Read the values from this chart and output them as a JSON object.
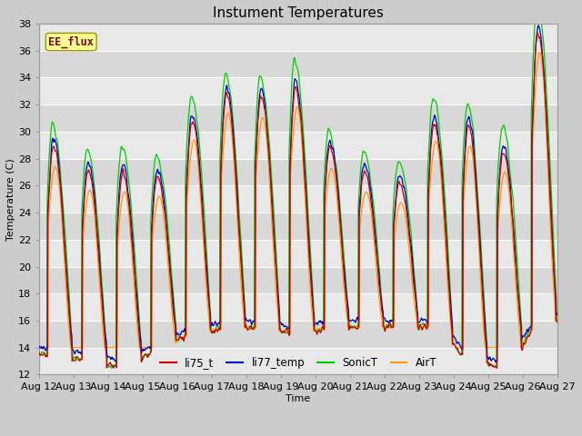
{
  "title": "Instument Temperatures",
  "xlabel": "Time",
  "ylabel": "Temperature (C)",
  "ylim": [
    12,
    38
  ],
  "yticks": [
    12,
    14,
    16,
    18,
    20,
    22,
    24,
    26,
    28,
    30,
    32,
    34,
    36,
    38
  ],
  "xtick_labels": [
    "Aug 12",
    "Aug 13",
    "Aug 14",
    "Aug 15",
    "Aug 16",
    "Aug 17",
    "Aug 18",
    "Aug 19",
    "Aug 20",
    "Aug 21",
    "Aug 22",
    "Aug 23",
    "Aug 24",
    "Aug 25",
    "Aug 26",
    "Aug 27"
  ],
  "colors": {
    "li75_t": "#cc0000",
    "li77_temp": "#0000cc",
    "SonicT": "#00cc00",
    "AirT": "#ff9900"
  },
  "legend_label": "EE_flux",
  "legend_text_color": "#8b0000",
  "legend_box_color": "#ffff99",
  "legend_box_edge": "#999900",
  "band_colors": [
    "#e8e8e8",
    "#d8d8d8"
  ],
  "grid_line_color": "#ffffff",
  "fig_bg": "#cccccc",
  "series_names": [
    "li75_t",
    "li77_temp",
    "SonicT",
    "AirT"
  ],
  "peak_amps": [
    15.5,
    14.0,
    14.5,
    12.5,
    16.0,
    17.5,
    17.0,
    18.5,
    13.0,
    11.5,
    10.5,
    15.5,
    17.5,
    15.5,
    22.0
  ],
  "min_temps": [
    13.5,
    13.0,
    12.5,
    14.0,
    15.0,
    15.5,
    15.5,
    15.0,
    15.5,
    15.5,
    15.5,
    15.5,
    13.0,
    12.5,
    16.0
  ],
  "sonic_extra": [
    1.5,
    1.5,
    2.0,
    1.5,
    2.0,
    1.5,
    1.5,
    2.0,
    1.0,
    1.5,
    1.5,
    2.0,
    1.5,
    2.0,
    2.5
  ]
}
